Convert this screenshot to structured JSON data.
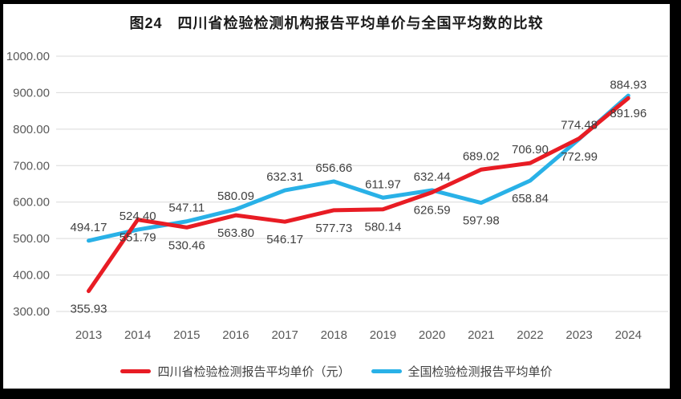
{
  "title": "图24　四川省检验检测机构报告平均单价与全国平均数的比较",
  "colors": {
    "frame": "#000000",
    "background": "#ffffff",
    "gridline": "#d9d9d9",
    "axis_text": "#595959",
    "data_label_text": "#404040",
    "title_text": "#1a1a1a",
    "sichuan_red": "#e81c24",
    "national_blue": "#29b1e7"
  },
  "chart_data": {
    "type": "line",
    "title": "图24　四川省检验检测机构报告平均单价与全国平均数的比较",
    "categories": [
      "2013",
      "2014",
      "2015",
      "2016",
      "2017",
      "2018",
      "2019",
      "2020",
      "2021",
      "2022",
      "2023",
      "2024"
    ],
    "series": [
      {
        "name": "四川省检验检测报告平均单价（元）",
        "color": "#e81c24",
        "values": [
          355.93,
          551.79,
          530.46,
          563.8,
          546.17,
          577.73,
          580.14,
          626.59,
          689.02,
          706.9,
          774.48,
          884.93
        ],
        "label_side": [
          "below",
          "below",
          "below",
          "below",
          "below",
          "below",
          "below",
          "below",
          "above",
          "above",
          "above",
          "above"
        ]
      },
      {
        "name": "全国检验检测报告平均单价",
        "color": "#29b1e7",
        "values": [
          494.17,
          524.4,
          547.11,
          580.09,
          632.31,
          656.66,
          611.97,
          632.44,
          597.98,
          658.84,
          772.99,
          891.96
        ],
        "label_side": [
          "above",
          "above",
          "above",
          "above",
          "above",
          "above",
          "above",
          "above",
          "below",
          "below",
          "below",
          "below"
        ]
      }
    ],
    "ylim": [
      300,
      1000
    ],
    "ytick_step": 100,
    "ytick_labels": [
      "300.00",
      "400.00",
      "500.00",
      "600.00",
      "700.00",
      "800.00",
      "900.00",
      "1000.00"
    ],
    "xlabel": "",
    "ylabel": "",
    "grid": true,
    "data_labels": true,
    "value_format": "0.00",
    "legend_position": "bottom"
  }
}
